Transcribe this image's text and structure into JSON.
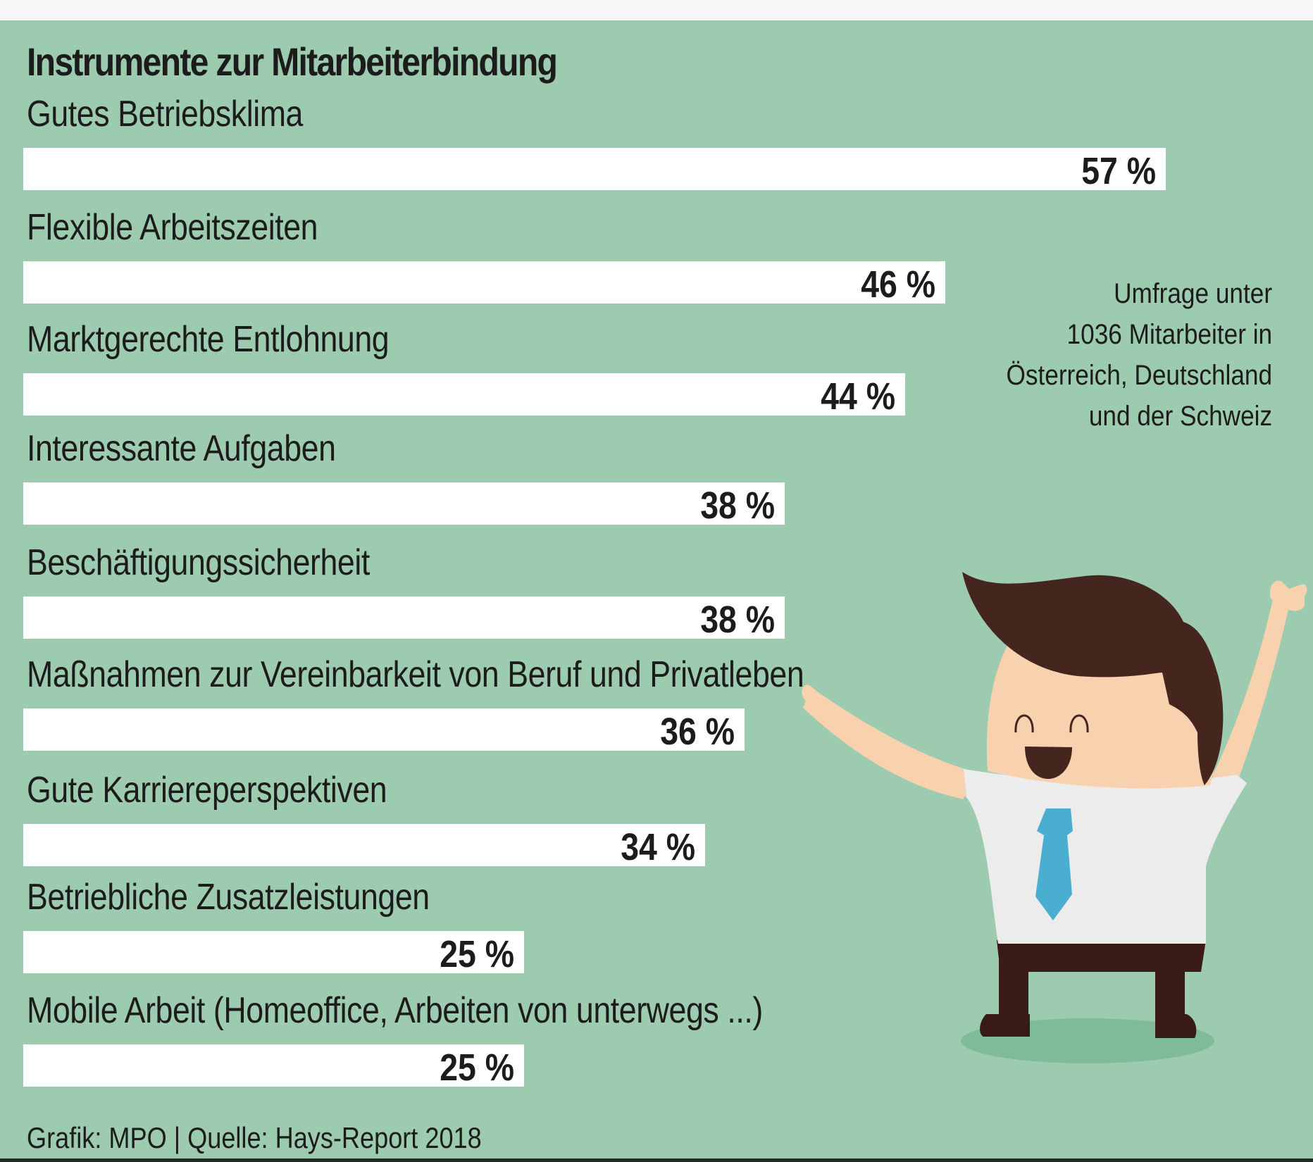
{
  "chart_data": {
    "type": "bar",
    "orientation": "horizontal",
    "title": "Instrumente zur Mitarbeiterbindung",
    "xlabel": "",
    "ylabel": "",
    "unit": "%",
    "xlim": [
      0,
      57
    ],
    "grid": false,
    "categories": [
      "Gutes Betriebsklima",
      "Flexible Arbeitszeiten",
      "Marktgerechte Entlohnung",
      "Interessante Aufgaben",
      "Beschäftigungssicherheit",
      "Maßnahmen zur Vereinbarkeit von Beruf und Privatleben",
      "Gute Karriereperspektiven",
      "Betriebliche Zusatzleistungen",
      "Mobile Arbeit (Homeoffice, Arbeiten von unterwegs ...)"
    ],
    "values": [
      57,
      46,
      44,
      38,
      38,
      36,
      34,
      25,
      25
    ],
    "value_labels": [
      "57 %",
      "46 %",
      "44 %",
      "38 %",
      "38 %",
      "36 %",
      "34 %",
      "25 %",
      "25 %"
    ],
    "annotation": [
      "Umfrage unter",
      "1036 Mitarbeiter in",
      "Österreich, Deutschland",
      "und der Schweiz"
    ],
    "source": "Grafik: MPO | Quelle: Hays-Report 2018"
  },
  "colors": {
    "background": "#9dcbb0",
    "bar": "#ffffff",
    "text": "#1c1c1c",
    "hair": "#45261f",
    "skin": "#f8d1ae",
    "shirt": "#ececec",
    "tie": "#4aaed1",
    "pants": "#3a1a17",
    "shadow": "#7fbb98"
  },
  "illustration": "cheering-businessman"
}
